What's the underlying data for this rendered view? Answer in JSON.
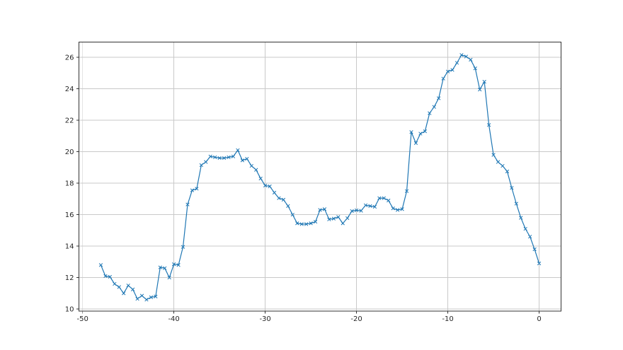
{
  "figure": {
    "background": "#ffffff",
    "plot_background": "#ffffff",
    "grid_color": "#c9c9c9",
    "spine_color": "#333333",
    "tick_color": "#333333"
  },
  "chart_data": {
    "type": "line",
    "grid": true,
    "legend_position": "none",
    "xlim": [
      -50.4,
      2.4
    ],
    "ylim": [
      9.87,
      26.97
    ],
    "xticks": [
      -50,
      -40,
      -30,
      -20,
      -10,
      0
    ],
    "yticks": [
      10,
      12,
      14,
      16,
      18,
      20,
      22,
      24,
      26
    ],
    "series": [
      {
        "name": "series-1",
        "color": "#1f77b4",
        "marker": "x",
        "x": [
          -48.0,
          -47.5,
          -47.0,
          -46.5,
          -46.0,
          -45.5,
          -45.0,
          -44.5,
          -44.0,
          -43.5,
          -43.0,
          -42.5,
          -42.0,
          -41.5,
          -41.0,
          -40.5,
          -40.0,
          -39.5,
          -39.0,
          -38.5,
          -38.0,
          -37.5,
          -37.0,
          -36.5,
          -36.0,
          -35.5,
          -35.0,
          -34.5,
          -34.0,
          -33.5,
          -33.0,
          -32.5,
          -32.0,
          -31.5,
          -31.0,
          -30.5,
          -30.0,
          -29.5,
          -29.0,
          -28.5,
          -28.0,
          -27.5,
          -27.0,
          -26.5,
          -26.0,
          -25.5,
          -25.0,
          -24.5,
          -24.0,
          -23.5,
          -23.0,
          -22.5,
          -22.0,
          -21.5,
          -21.0,
          -20.5,
          -20.0,
          -19.5,
          -19.0,
          -18.5,
          -18.0,
          -17.5,
          -17.0,
          -16.5,
          -16.0,
          -15.5,
          -15.0,
          -14.5,
          -14.0,
          -13.5,
          -13.0,
          -12.5,
          -12.0,
          -11.5,
          -11.0,
          -10.5,
          -10.0,
          -9.5,
          -9.0,
          -8.5,
          -8.0,
          -7.5,
          -7.0,
          -6.5,
          -6.0,
          -5.5,
          -5.0,
          -4.5,
          -4.0,
          -3.5,
          -3.0,
          -2.5,
          -2.0,
          -1.5,
          -1.0,
          -0.5,
          0.0
        ],
        "y": [
          12.8,
          12.1,
          12.05,
          11.6,
          11.4,
          11.0,
          11.5,
          11.25,
          10.65,
          10.85,
          10.6,
          10.75,
          10.8,
          12.65,
          12.6,
          12.0,
          12.85,
          12.8,
          13.95,
          16.65,
          17.55,
          17.65,
          19.15,
          19.35,
          19.7,
          19.65,
          19.6,
          19.6,
          19.65,
          19.7,
          20.1,
          19.45,
          19.55,
          19.1,
          18.85,
          18.3,
          17.85,
          17.8,
          17.4,
          17.05,
          16.95,
          16.55,
          16.0,
          15.45,
          15.4,
          15.4,
          15.45,
          15.55,
          16.3,
          16.35,
          15.7,
          15.75,
          15.85,
          15.45,
          15.78,
          16.23,
          16.28,
          16.25,
          16.6,
          16.55,
          16.5,
          17.05,
          17.05,
          16.9,
          16.4,
          16.3,
          16.35,
          17.5,
          21.25,
          20.55,
          21.15,
          21.3,
          22.45,
          22.85,
          23.4,
          24.65,
          25.1,
          25.2,
          25.65,
          26.15,
          26.05,
          25.85,
          25.3,
          23.95,
          24.45,
          21.7,
          19.8,
          19.35,
          19.1,
          18.75,
          17.7,
          16.7,
          15.8,
          15.1,
          14.6,
          13.8,
          12.9
        ]
      }
    ]
  }
}
